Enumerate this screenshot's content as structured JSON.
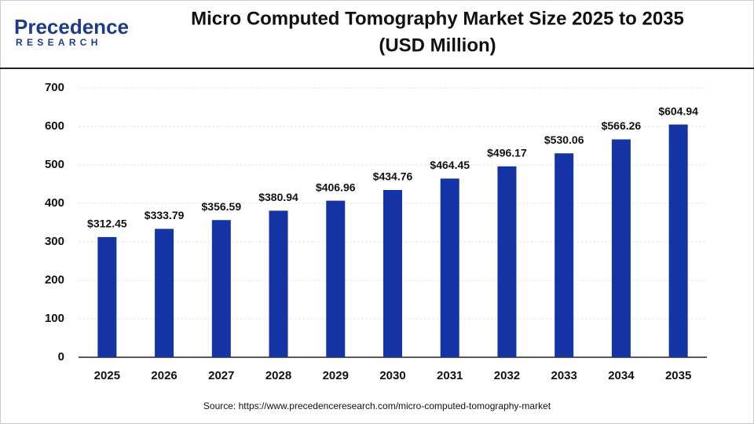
{
  "logo": {
    "name": "Precedence",
    "tagline": "RESEARCH"
  },
  "chart_data": {
    "type": "bar",
    "title": "Micro Computed Tomography Market Size 2025 to 2035",
    "subtitle": "(USD Million)",
    "categories": [
      "2025",
      "2026",
      "2027",
      "2028",
      "2029",
      "2030",
      "2031",
      "2032",
      "2033",
      "2034",
      "2035"
    ],
    "values": [
      312.45,
      333.79,
      356.59,
      380.94,
      406.96,
      434.76,
      464.45,
      496.17,
      530.06,
      566.26,
      604.94
    ],
    "value_labels": [
      "$312.45",
      "$333.79",
      "$356.59",
      "$380.94",
      "$406.96",
      "$434.76",
      "$464.45",
      "$496.17",
      "$530.06",
      "$566.26",
      "$604.94"
    ],
    "color": "#1434a6",
    "ylim": [
      0,
      700
    ],
    "yticks": [
      0,
      100,
      200,
      300,
      400,
      500,
      600,
      700
    ],
    "grid": true,
    "source": "Source: https://www.precedenceresearch.com/micro-computed-tomography-market"
  }
}
